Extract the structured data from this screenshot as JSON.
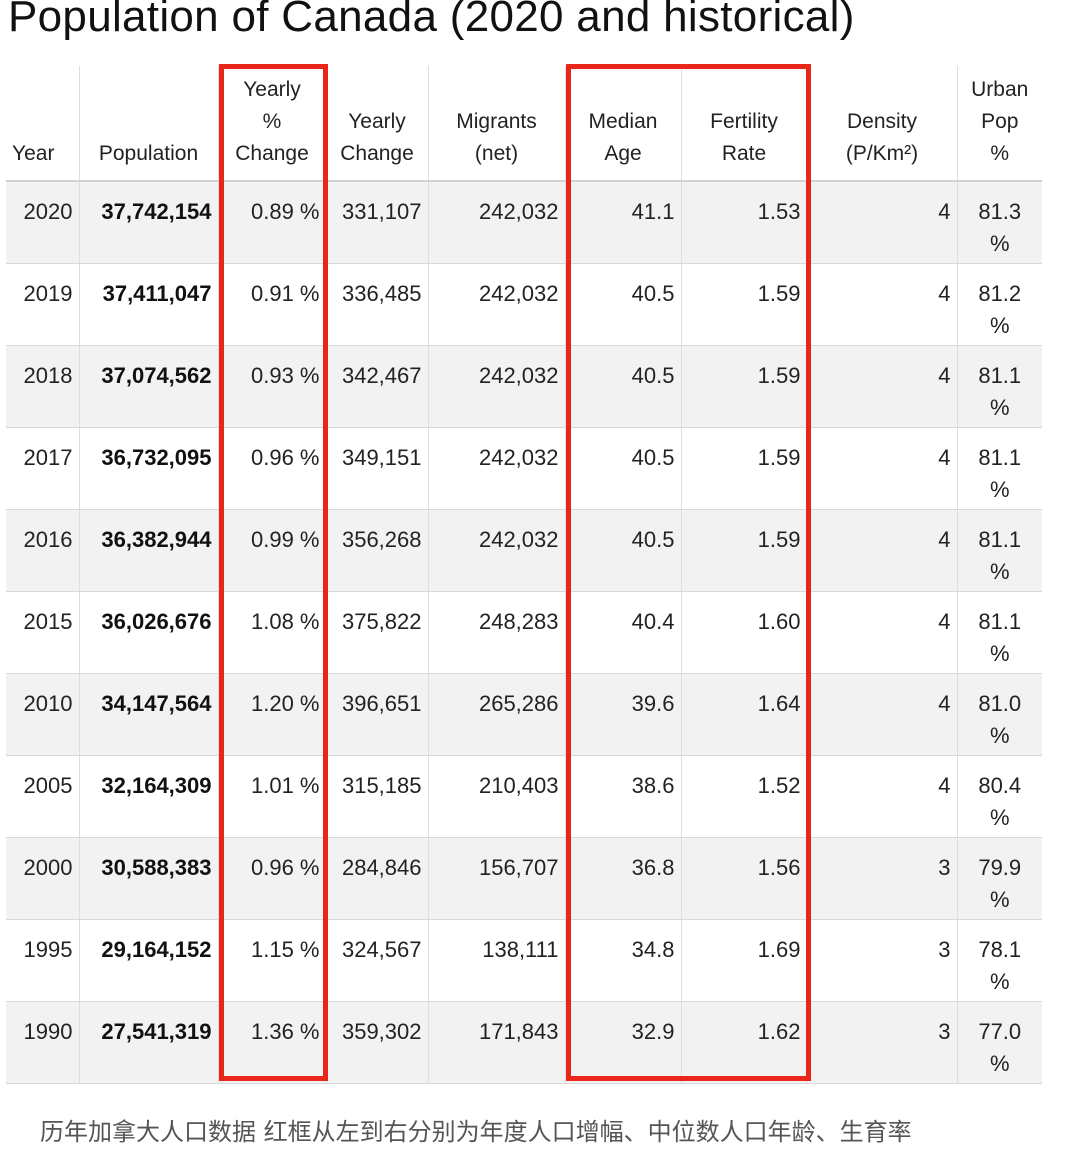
{
  "title": "Population of Canada (2020 and historical)",
  "headers": {
    "year": "Year",
    "population": "Population",
    "yearly_pct_change": [
      "Yearly",
      "%",
      "Change"
    ],
    "yearly_change": [
      "Yearly",
      "Change"
    ],
    "migrants": [
      "Migrants",
      "(net)"
    ],
    "median_age": [
      "Median",
      "Age"
    ],
    "fertility_rate": [
      "Fertility",
      "Rate"
    ],
    "density": [
      "Density",
      "(P/Km²)"
    ],
    "urban_pop": [
      "Urban",
      "Pop",
      "%"
    ]
  },
  "rows": [
    {
      "year": "2020",
      "population": "37,742,154",
      "pct": "0.89 %",
      "change": "331,107",
      "migrants": "242,032",
      "age": "41.1",
      "fert": "1.53",
      "density": "4",
      "urban": "81.3",
      "urban_unit": "%"
    },
    {
      "year": "2019",
      "population": "37,411,047",
      "pct": "0.91 %",
      "change": "336,485",
      "migrants": "242,032",
      "age": "40.5",
      "fert": "1.59",
      "density": "4",
      "urban": "81.2",
      "urban_unit": "%"
    },
    {
      "year": "2018",
      "population": "37,074,562",
      "pct": "0.93 %",
      "change": "342,467",
      "migrants": "242,032",
      "age": "40.5",
      "fert": "1.59",
      "density": "4",
      "urban": "81.1",
      "urban_unit": "%"
    },
    {
      "year": "2017",
      "population": "36,732,095",
      "pct": "0.96 %",
      "change": "349,151",
      "migrants": "242,032",
      "age": "40.5",
      "fert": "1.59",
      "density": "4",
      "urban": "81.1",
      "urban_unit": "%"
    },
    {
      "year": "2016",
      "population": "36,382,944",
      "pct": "0.99 %",
      "change": "356,268",
      "migrants": "242,032",
      "age": "40.5",
      "fert": "1.59",
      "density": "4",
      "urban": "81.1",
      "urban_unit": "%"
    },
    {
      "year": "2015",
      "population": "36,026,676",
      "pct": "1.08 %",
      "change": "375,822",
      "migrants": "248,283",
      "age": "40.4",
      "fert": "1.60",
      "density": "4",
      "urban": "81.1",
      "urban_unit": "%"
    },
    {
      "year": "2010",
      "population": "34,147,564",
      "pct": "1.20 %",
      "change": "396,651",
      "migrants": "265,286",
      "age": "39.6",
      "fert": "1.64",
      "density": "4",
      "urban": "81.0",
      "urban_unit": "%"
    },
    {
      "year": "2005",
      "population": "32,164,309",
      "pct": "1.01 %",
      "change": "315,185",
      "migrants": "210,403",
      "age": "38.6",
      "fert": "1.52",
      "density": "4",
      "urban": "80.4",
      "urban_unit": "%"
    },
    {
      "year": "2000",
      "population": "30,588,383",
      "pct": "0.96 %",
      "change": "284,846",
      "migrants": "156,707",
      "age": "36.8",
      "fert": "1.56",
      "density": "3",
      "urban": "79.9",
      "urban_unit": "%"
    },
    {
      "year": "1995",
      "population": "29,164,152",
      "pct": "1.15 %",
      "change": "324,567",
      "migrants": "138,111",
      "age": "34.8",
      "fert": "1.69",
      "density": "3",
      "urban": "78.1",
      "urban_unit": "%"
    },
    {
      "year": "1990",
      "population": "27,541,319",
      "pct": "1.36 %",
      "change": "359,302",
      "migrants": "171,843",
      "age": "32.9",
      "fert": "1.62",
      "density": "3",
      "urban": "77.0",
      "urban_unit": "%"
    }
  ],
  "highlight_color": "#e8261a",
  "caption": "历年加拿大人口数据 红框从左到右分别为年度人口增幅、中位数人口年龄、生育率"
}
